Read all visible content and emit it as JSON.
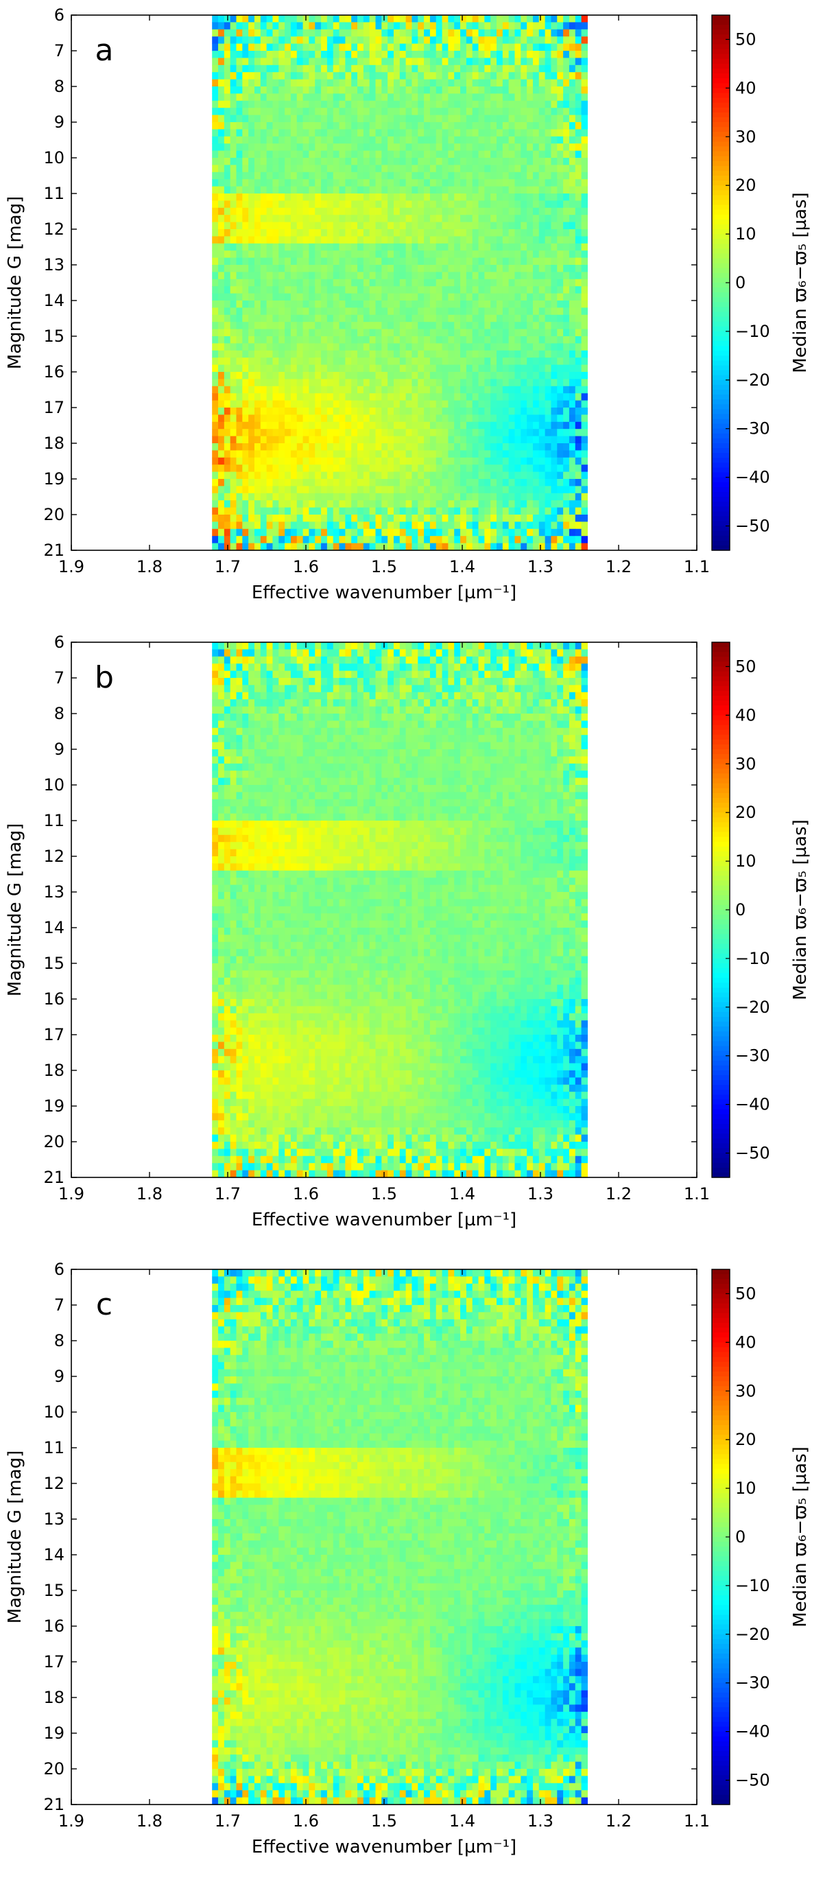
{
  "chart_data": [
    {
      "type": "heatmap",
      "panel_label": "a",
      "xlabel": "Effective wavenumber [µm⁻¹]",
      "ylabel": "Magnitude G [mag]",
      "colorbar_label": "Median ϖ₆−ϖ₅ [µas]",
      "xlim": [
        1.9,
        1.1
      ],
      "ylim": [
        21,
        6
      ],
      "data_x_range": [
        1.72,
        1.24
      ],
      "xticks": [
        "1.9",
        "1.8",
        "1.7",
        "1.6",
        "1.5",
        "1.4",
        "1.3",
        "1.2",
        "1.1"
      ],
      "yticks": [
        "6",
        "7",
        "8",
        "9",
        "10",
        "11",
        "12",
        "13",
        "14",
        "15",
        "16",
        "17",
        "18",
        "19",
        "20",
        "21"
      ],
      "clim": [
        -55,
        55
      ],
      "cticks": [
        "50",
        "40",
        "30",
        "20",
        "10",
        "0",
        "−10",
        "−20",
        "−30",
        "−40",
        "−50"
      ],
      "features": {
        "band_11_12": 12,
        "faint_blue_red_mag18": 16,
        "faint_red_blue_mag18": -20,
        "noise": 34,
        "seed": 11
      }
    },
    {
      "type": "heatmap",
      "panel_label": "b",
      "xlabel": "Effective wavenumber [µm⁻¹]",
      "ylabel": "Magnitude G [mag]",
      "colorbar_label": "Median ϖ₆−ϖ₅ [µas]",
      "xlim": [
        1.9,
        1.1
      ],
      "ylim": [
        21,
        6
      ],
      "data_x_range": [
        1.72,
        1.24
      ],
      "xticks": [
        "1.9",
        "1.8",
        "1.7",
        "1.6",
        "1.5",
        "1.4",
        "1.3",
        "1.2",
        "1.1"
      ],
      "yticks": [
        "6",
        "7",
        "8",
        "9",
        "10",
        "11",
        "12",
        "13",
        "14",
        "15",
        "16",
        "17",
        "18",
        "19",
        "20",
        "21"
      ],
      "clim": [
        -55,
        55
      ],
      "cticks": [
        "50",
        "40",
        "30",
        "20",
        "10",
        "0",
        "−10",
        "−20",
        "−30",
        "−40",
        "−50"
      ],
      "features": {
        "band_11_12": 13,
        "faint_blue_red_mag18": 10,
        "faint_red_blue_mag18": -18,
        "noise": 26,
        "seed": 23
      }
    },
    {
      "type": "heatmap",
      "panel_label": "c",
      "xlabel": "Effective wavenumber [µm⁻¹]",
      "ylabel": "Magnitude G [mag]",
      "colorbar_label": "Median ϖ₆−ϖ₅ [µas]",
      "xlim": [
        1.9,
        1.1
      ],
      "ylim": [
        21,
        6
      ],
      "data_x_range": [
        1.72,
        1.24
      ],
      "xticks": [
        "1.9",
        "1.8",
        "1.7",
        "1.6",
        "1.5",
        "1.4",
        "1.3",
        "1.2",
        "1.1"
      ],
      "yticks": [
        "6",
        "7",
        "8",
        "9",
        "10",
        "11",
        "12",
        "13",
        "14",
        "15",
        "16",
        "17",
        "18",
        "19",
        "20",
        "21"
      ],
      "clim": [
        -55,
        55
      ],
      "cticks": [
        "50",
        "40",
        "30",
        "20",
        "10",
        "0",
        "−10",
        "−20",
        "−30",
        "−40",
        "−50"
      ],
      "features": {
        "band_11_12": 14,
        "faint_blue_red_mag18": 8,
        "faint_red_blue_mag18": -20,
        "noise": 28,
        "seed": 37
      }
    }
  ]
}
